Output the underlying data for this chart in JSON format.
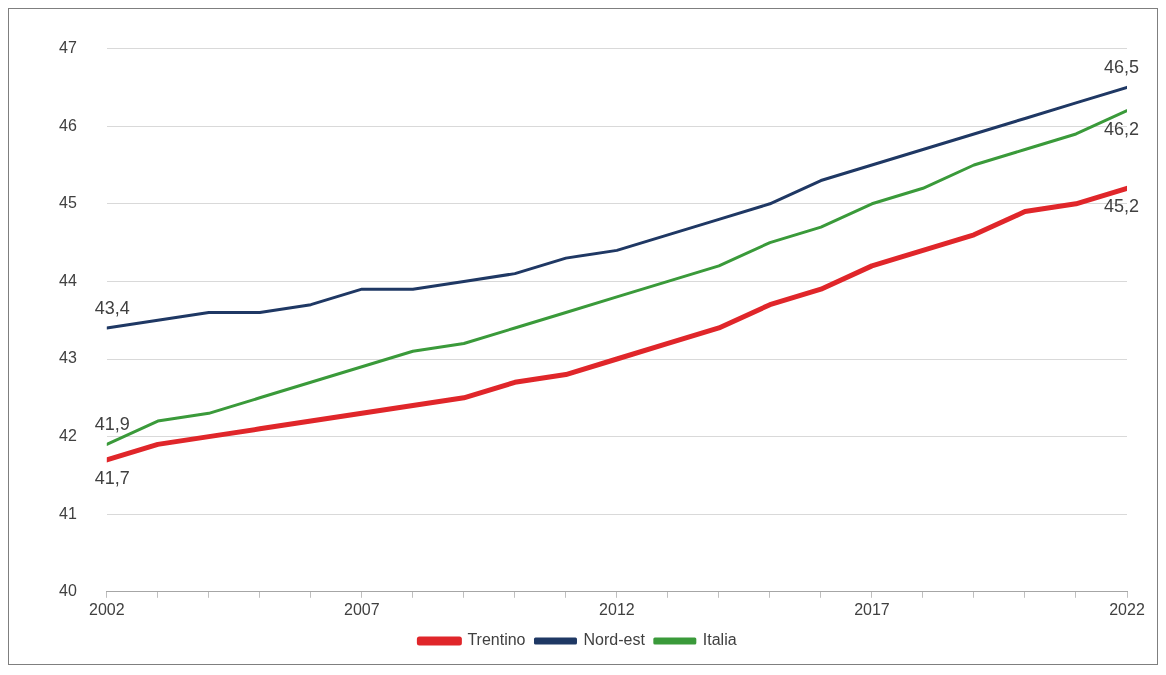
{
  "chart_data": {
    "type": "line",
    "x": [
      2002,
      2003,
      2004,
      2005,
      2006,
      2007,
      2008,
      2009,
      2010,
      2011,
      2012,
      2013,
      2014,
      2015,
      2016,
      2017,
      2018,
      2019,
      2020,
      2021,
      2022
    ],
    "xlim": [
      2002,
      2022
    ],
    "xticks": [
      2002,
      {
        "value": 2003,
        "label": null
      },
      {
        "value": 2004,
        "label": null
      },
      {
        "value": 2005,
        "label": null
      },
      {
        "value": 2006,
        "label": null
      },
      2007,
      {
        "value": 2008,
        "label": null
      },
      {
        "value": 2009,
        "label": null
      },
      {
        "value": 2010,
        "label": null
      },
      {
        "value": 2011,
        "label": null
      },
      2012,
      {
        "value": 2013,
        "label": null
      },
      {
        "value": 2014,
        "label": null
      },
      {
        "value": 2015,
        "label": null
      },
      {
        "value": 2016,
        "label": null
      },
      2017,
      {
        "value": 2018,
        "label": null
      },
      {
        "value": 2019,
        "label": null
      },
      {
        "value": 2020,
        "label": null
      },
      {
        "value": 2021,
        "label": null
      },
      2022
    ],
    "ylim": [
      40,
      47
    ],
    "yticks": [
      40,
      41,
      42,
      43,
      44,
      45,
      46,
      47
    ],
    "grid": "y",
    "legend": "bottom",
    "series": [
      {
        "name": "Trentino",
        "color": "#e0262a",
        "values": [
          41.7,
          41.9,
          42.0,
          42.1,
          42.2,
          42.3,
          42.4,
          42.5,
          42.7,
          42.8,
          43.0,
          43.2,
          43.4,
          43.7,
          43.9,
          44.2,
          44.4,
          44.6,
          44.9,
          45.0,
          45.2
        ],
        "value_labels": [
          "41,7",
          null,
          null,
          null,
          null,
          null,
          null,
          null,
          null,
          null,
          null,
          null,
          null,
          null,
          null,
          null,
          null,
          null,
          null,
          null,
          "45,2"
        ]
      },
      {
        "name": "Nord-est",
        "color": "#1f3864",
        "values": [
          43.4,
          43.5,
          43.6,
          43.6,
          43.7,
          43.9,
          43.9,
          44.0,
          44.1,
          44.3,
          44.4,
          44.6,
          44.8,
          45.0,
          45.3,
          45.5,
          45.7,
          45.9,
          46.1,
          46.3,
          46.5
        ],
        "value_labels": [
          "43,4",
          null,
          null,
          null,
          null,
          null,
          null,
          null,
          null,
          null,
          null,
          null,
          null,
          null,
          null,
          null,
          null,
          null,
          null,
          null,
          "46,5"
        ]
      },
      {
        "name": "Italia",
        "color": "#3a9a3a",
        "values": [
          41.9,
          42.2,
          42.3,
          42.5,
          42.7,
          42.9,
          43.1,
          43.2,
          43.4,
          43.6,
          43.8,
          44.0,
          44.2,
          44.5,
          44.7,
          45.0,
          45.2,
          45.5,
          45.7,
          45.9,
          46.2
        ],
        "value_labels": [
          "41,9",
          null,
          null,
          null,
          null,
          null,
          null,
          null,
          null,
          null,
          null,
          null,
          null,
          null,
          null,
          null,
          null,
          null,
          null,
          null,
          "46,2"
        ]
      }
    ]
  }
}
